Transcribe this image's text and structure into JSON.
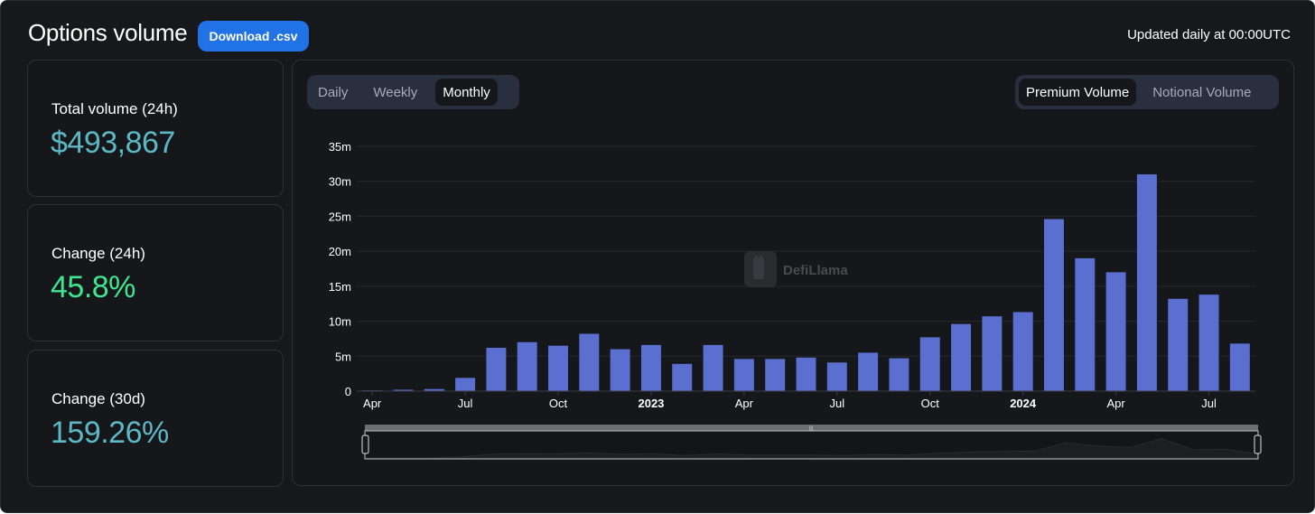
{
  "header": {
    "title": "Options volume",
    "download_label": "Download .csv",
    "updated_text": "Updated daily at 00:00UTC"
  },
  "stats": [
    {
      "label": "Total volume (24h)",
      "value": "$493,867",
      "color": "#5cb8c4"
    },
    {
      "label": "Change (24h)",
      "value": "45.8%",
      "color": "#3ee68f"
    },
    {
      "label": "Change (30d)",
      "value": "159.26%",
      "color": "#5cb8c4"
    }
  ],
  "period_tabs": {
    "items": [
      "Daily",
      "Weekly",
      "Monthly"
    ],
    "selected": "Monthly"
  },
  "volume_tabs": {
    "items": [
      "Premium Volume",
      "Notional Volume"
    ],
    "selected": "Premium Volume"
  },
  "watermark": "DefiLlama",
  "colors": {
    "bar": "#5b6fd1",
    "background": "#17181c"
  },
  "chart_data": {
    "type": "bar",
    "categories": [
      "2022-04",
      "2022-05",
      "2022-06",
      "2022-07",
      "2022-08",
      "2022-09",
      "2022-10",
      "2022-11",
      "2022-12",
      "2023-01",
      "2023-02",
      "2023-03",
      "2023-04",
      "2023-05",
      "2023-06",
      "2023-07",
      "2023-08",
      "2023-09",
      "2023-10",
      "2023-11",
      "2023-12",
      "2024-01",
      "2024-02",
      "2024-03",
      "2024-04",
      "2024-05",
      "2024-06",
      "2024-07",
      "2024-08"
    ],
    "values": [
      0.1,
      0.2,
      0.3,
      1.9,
      6.2,
      7.0,
      6.5,
      8.2,
      6.0,
      6.6,
      3.9,
      6.6,
      4.6,
      4.6,
      4.8,
      4.1,
      5.5,
      4.7,
      7.7,
      9.6,
      10.7,
      11.3,
      24.6,
      19.0,
      17.0,
      31.0,
      13.2,
      13.8,
      6.8
    ],
    "tick_labels": [
      {
        "label": "Apr",
        "index": 0,
        "bold": false
      },
      {
        "label": "Jul",
        "index": 3,
        "bold": false
      },
      {
        "label": "Oct",
        "index": 6,
        "bold": false
      },
      {
        "label": "2023",
        "index": 9,
        "bold": true
      },
      {
        "label": "Apr",
        "index": 12,
        "bold": false
      },
      {
        "label": "Jul",
        "index": 15,
        "bold": false
      },
      {
        "label": "Oct",
        "index": 18,
        "bold": false
      },
      {
        "label": "2024",
        "index": 21,
        "bold": true
      },
      {
        "label": "Apr",
        "index": 24,
        "bold": false
      },
      {
        "label": "Jul",
        "index": 27,
        "bold": false
      }
    ],
    "y_ticks": [
      0,
      5,
      10,
      15,
      20,
      25,
      30,
      35
    ],
    "y_tick_labels": [
      "0",
      "5m",
      "10m",
      "15m",
      "20m",
      "25m",
      "30m",
      "35m"
    ],
    "ylim": [
      0,
      35
    ],
    "grid": true,
    "legend": "none"
  }
}
